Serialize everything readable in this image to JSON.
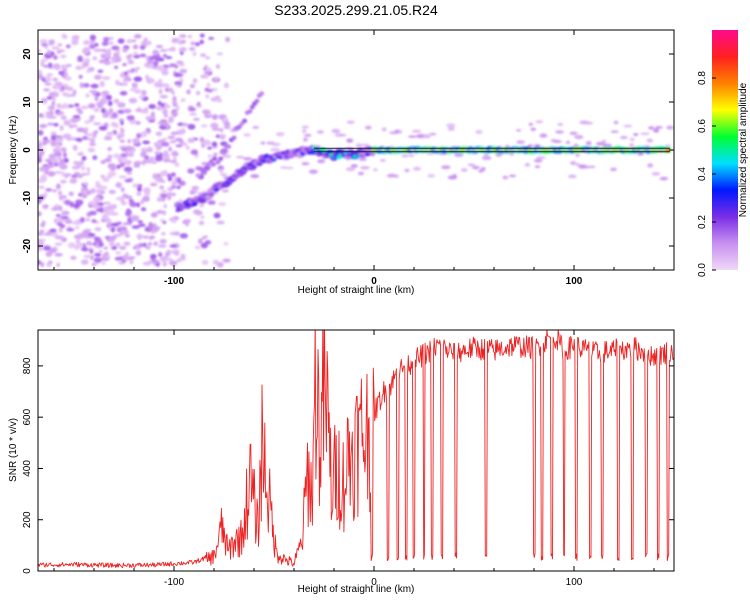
{
  "chart_data": [
    {
      "type": "heatmap",
      "title": "S233.2025.299.21.05.R24",
      "xlabel": "Height of straight line (km)",
      "ylabel": "Frequency (Hz)",
      "xlim": [
        -168,
        150
      ],
      "ylim": [
        -25,
        25
      ],
      "xticks": [
        -100,
        0,
        100
      ],
      "xtick_labels": [
        "-100",
        "0",
        "100"
      ],
      "yticks": [
        -20,
        -10,
        0,
        10,
        20
      ],
      "ytick_labels": [
        "-20",
        "-10",
        "0",
        "10",
        "20"
      ],
      "colorbar": {
        "label": "Normalized spectral amplitude",
        "range": [
          0,
          1
        ],
        "ticks": [
          0.0,
          0.2,
          0.4,
          0.6,
          0.8
        ],
        "tick_labels": [
          "0.0",
          "0.2",
          "0.4",
          "0.6",
          "0.8"
        ],
        "colors": [
          "#f0d8f8",
          "#c890f0",
          "#7a2ee6",
          "#0018ff",
          "#00e0ff",
          "#00ff30",
          "#ffff00",
          "#ff8000",
          "#ff2020",
          "#ff0a8c"
        ]
      },
      "regions": [
        {
          "name": "noise",
          "x_range": [
            -168,
            -85
          ],
          "freq_range": [
            -24,
            24
          ],
          "amplitude": 0.08
        },
        {
          "name": "track",
          "points": [
            [
              -98,
              -12
            ],
            [
              -85,
              -10
            ],
            [
              -75,
              -7
            ],
            [
              -65,
              -4
            ],
            [
              -55,
              -2
            ],
            [
              -45,
              -1
            ],
            [
              -30,
              0
            ],
            [
              -20,
              -1
            ],
            [
              -10,
              -1
            ],
            [
              0,
              0
            ],
            [
              50,
              0
            ],
            [
              100,
              0
            ],
            [
              148,
              0
            ]
          ],
          "amplitude_range": [
            0.2,
            0.9
          ]
        },
        {
          "name": "upper-branch",
          "points": [
            [
              -88,
              -5
            ],
            [
              -78,
              -2
            ],
            [
              -70,
              3
            ],
            [
              -62,
              8
            ],
            [
              -55,
              13
            ]
          ],
          "amplitude": 0.15
        }
      ]
    },
    {
      "type": "line",
      "xlabel": "Height of straight line (km)",
      "ylabel": "SNR (10 * v/v)",
      "xlim": [
        -168,
        150
      ],
      "ylim": [
        0,
        940
      ],
      "xticks": [
        -100,
        0,
        100
      ],
      "xtick_labels": [
        "-100",
        "0",
        "100"
      ],
      "yticks": [
        0,
        200,
        400,
        600,
        800
      ],
      "ytick_labels": [
        "0",
        "200",
        "400",
        "600",
        "800"
      ],
      "series": [
        {
          "name": "SNR",
          "color": "#ee2222",
          "x": [
            -168,
            -150,
            -130,
            -110,
            -100,
            -90,
            -80,
            -76,
            -73,
            -70,
            -66,
            -62,
            -58,
            -56,
            -54,
            -52,
            -49,
            -45,
            -40,
            -36,
            -33,
            -31,
            -29,
            -27,
            -25,
            -23,
            -21,
            -19,
            -17,
            -15,
            -13,
            -11,
            -9,
            -7,
            -5,
            -3,
            -1,
            2,
            5,
            8,
            12,
            16,
            20,
            24,
            28,
            32,
            40,
            50,
            60,
            70,
            80,
            90,
            95,
            100,
            110,
            120,
            130,
            140,
            150
          ],
          "y": [
            20,
            22,
            18,
            20,
            25,
            30,
            60,
            180,
            80,
            120,
            140,
            380,
            170,
            530,
            400,
            260,
            80,
            50,
            30,
            120,
            420,
            300,
            850,
            500,
            750,
            600,
            320,
            420,
            400,
            360,
            470,
            480,
            520,
            540,
            580,
            560,
            600,
            650,
            700,
            720,
            780,
            800,
            820,
            840,
            860,
            880,
            850,
            870,
            860,
            880,
            870,
            920,
            860,
            880,
            850,
            860,
            870,
            840,
            860
          ]
        }
      ],
      "dropouts_x": [
        -1,
        7,
        12,
        16,
        20,
        25,
        29,
        34,
        41,
        56,
        80,
        84,
        89,
        95,
        101,
        108,
        114,
        122,
        129,
        136,
        142,
        147
      ]
    }
  ]
}
